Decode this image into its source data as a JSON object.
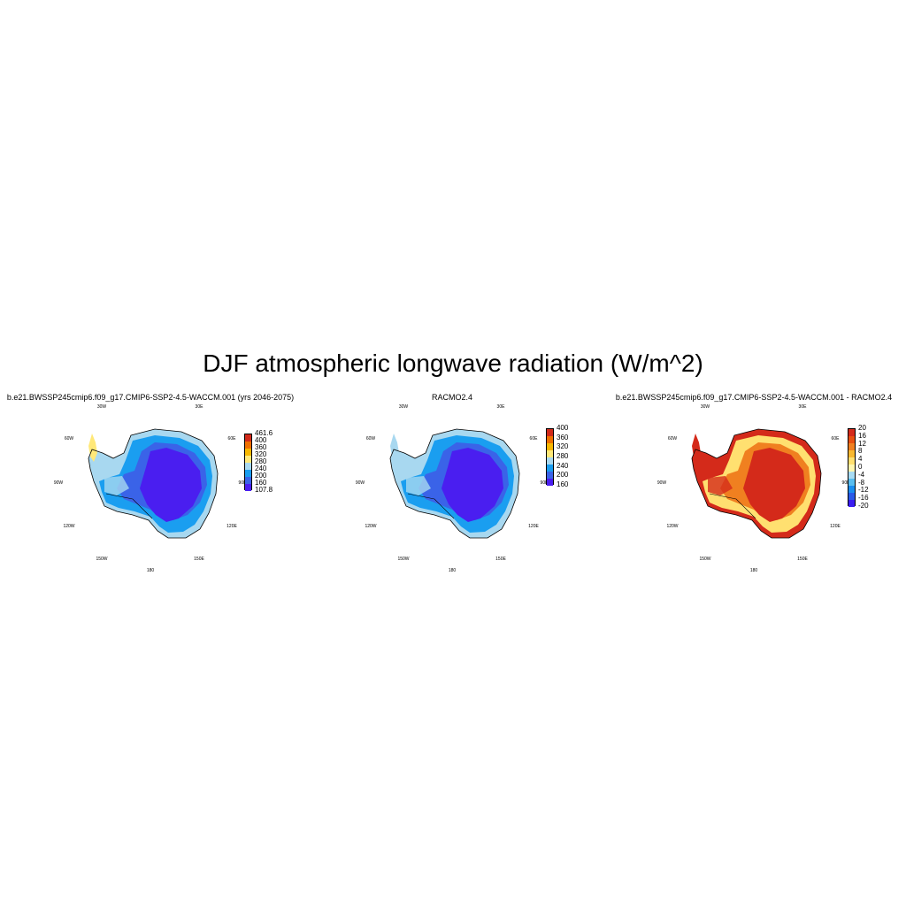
{
  "figure": {
    "title": "DJF atmospheric longwave radiation (W/m^2)"
  },
  "panels": [
    {
      "title": "b.e21.BWSSP245cmip6.f09_g17.CMIP6-SSP2-4.5-WACCM.001 (yrs 2046-2075)",
      "lon_labels": [
        "30W",
        "30E",
        "60W",
        "60E",
        "90W",
        "90E",
        "120W",
        "120E",
        "150W",
        "150E",
        "180"
      ],
      "colorbar": {
        "colors": [
          "#4a1ef0",
          "#3a63e8",
          "#1a9ef0",
          "#a8d8f0",
          "#ffe878",
          "#f8b800",
          "#f07000",
          "#d22a1a"
        ],
        "labels": [
          "461.6",
          "400",
          "360",
          "320",
          "280",
          "240",
          "200",
          "160",
          "107.8"
        ]
      },
      "fills": {
        "interior": "#4a1ef0",
        "mid": "#3a63e8",
        "outer": "#1a9ef0",
        "edge": "#a8d8f0",
        "tip": "#ffe878"
      }
    },
    {
      "title": "RACMO2.4",
      "lon_labels": [
        "30W",
        "30E",
        "60W",
        "60E",
        "90W",
        "90E",
        "120W",
        "120E",
        "150W",
        "150E",
        "180"
      ],
      "colorbar": {
        "colors": [
          "#4a1ef0",
          "#3a63e8",
          "#1a9ef0",
          "#a8d8f0",
          "#ffe878",
          "#f8b800",
          "#f07000",
          "#d22a1a"
        ],
        "labels": [
          "400",
          "360",
          "320",
          "280",
          "240",
          "200",
          "160"
        ]
      },
      "fills": {
        "interior": "#4a1ef0",
        "mid": "#3a63e8",
        "outer": "#1a9ef0",
        "edge": "#a8d8f0",
        "tip": "#a8d8f0"
      }
    },
    {
      "title": "b.e21.BWSSP245cmip6.f09_g17.CMIP6-SSP2-4.5-WACCM.001 - RACMO2.4",
      "lon_labels": [
        "30W",
        "30E",
        "60W",
        "60E",
        "90W",
        "90E",
        "120W",
        "120E",
        "150W",
        "150E",
        "180"
      ],
      "colorbar": {
        "colors": [
          "#3a1ef0",
          "#2a5ae8",
          "#1a8ef0",
          "#58bef0",
          "#a8dcf4",
          "#fff6b0",
          "#ffe070",
          "#f8b830",
          "#f08020",
          "#e85010",
          "#d42a1a"
        ],
        "labels": [
          "20",
          "16",
          "12",
          "8",
          "4",
          "0",
          "-4",
          "-8",
          "-12",
          "-16",
          "-20"
        ]
      },
      "fills": {
        "interior": "#d42a1a",
        "mid": "#f08020",
        "outer": "#ffe070",
        "edge": "#d42a1a",
        "tip": "#d42a1a"
      }
    }
  ]
}
